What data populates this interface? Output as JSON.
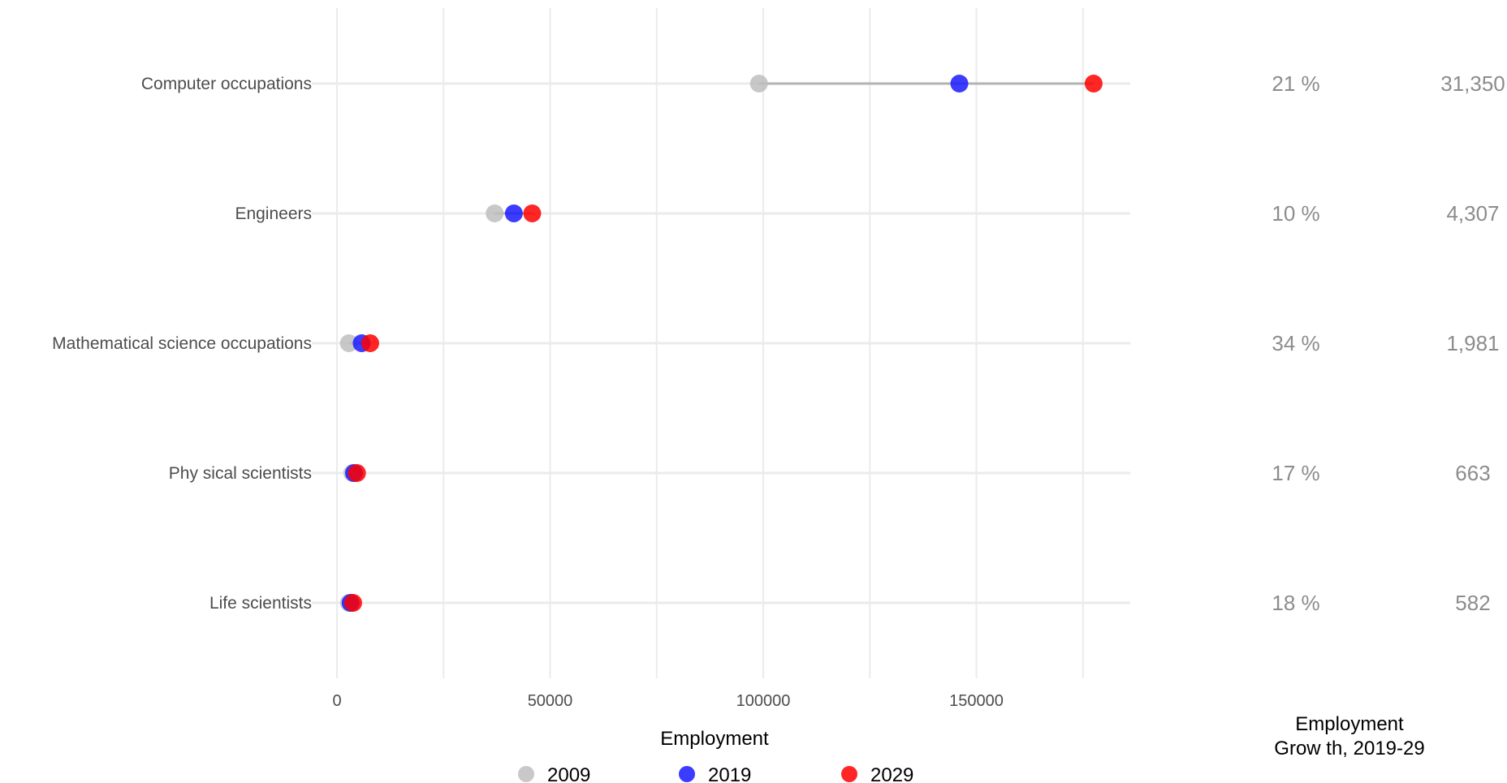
{
  "chart_data": {
    "type": "dumbbell",
    "xlabel": "Employment",
    "xlim": [
      0,
      185000
    ],
    "x_ticks": [
      0,
      50000,
      100000,
      150000
    ],
    "x_tick_labels": [
      "0",
      "50000",
      "100000",
      "150000"
    ],
    "categories": [
      "Computer occupations",
      "Engineers",
      "Mathematical science occupations",
      "Phy sical scientists",
      "Life scientists"
    ],
    "series": [
      {
        "name": "2009",
        "color": "#bebebe",
        "values": [
          99000,
          37000,
          2800,
          3600,
          2800
        ]
      },
      {
        "name": "2019",
        "color": "#1a1aff",
        "values": [
          146000,
          41500,
          5800,
          4000,
          3200
        ]
      },
      {
        "name": "2029",
        "color": "#ff0000",
        "values": [
          177500,
          45800,
          7800,
          4700,
          3800
        ]
      }
    ],
    "growth_pct": [
      "21 %",
      "10 %",
      "34 %",
      "17 %",
      "18 %"
    ],
    "growth_abs": [
      "31,350",
      "4,307",
      "1,981",
      "663",
      "582"
    ],
    "right_title_lines": [
      "Employment",
      "Grow th, 2019-29"
    ],
    "legend_position": "bottom",
    "grid": true
  }
}
